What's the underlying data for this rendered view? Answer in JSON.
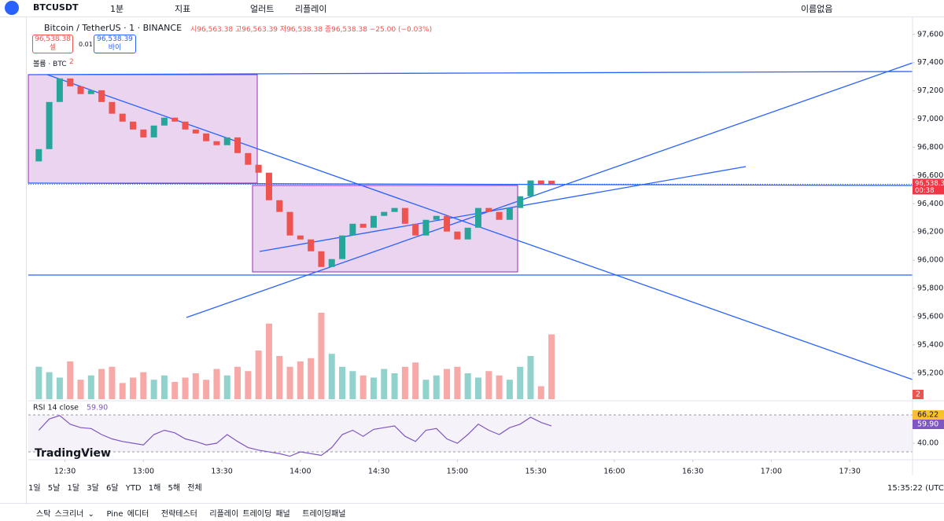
{
  "toolbar": {
    "symbol": "BTCUSDT",
    "interval": "1분",
    "indicators": "지표",
    "alert": "얼러트",
    "replay": "리플레이",
    "layout_name": "이름없음"
  },
  "legend": {
    "title": "Bitcoin / TetherUS · 1 · BINANCE",
    "ohlc": "시96,563.38 고96,563.39 저96,538.38 종96,538.38 −25.00 (−0.03%)",
    "sell_price": "96,538.38",
    "sell": "셀",
    "qty": "0.01",
    "buy_price": "96,538.39",
    "buy": "바이",
    "volume": "볼륨 · BTC",
    "volume_count": "2"
  },
  "price_label": "96,538.38",
  "countdown": "00:38",
  "alerts_count": "2",
  "rsi": {
    "label": "RSI 14 close",
    "value_label": "59.90",
    "ma_label": "66.22",
    "ylim": [
      25.5,
      84.5
    ],
    "yticks": [
      {
        "value": 40,
        "label": "40.00"
      }
    ],
    "values": [
      55,
      68,
      72,
      62,
      58,
      57,
      50,
      45,
      42,
      40,
      38,
      50,
      55,
      52,
      45,
      42,
      38,
      40,
      50,
      42,
      35,
      32,
      30,
      28,
      25,
      30,
      28,
      26,
      35,
      50,
      55,
      48,
      56,
      58,
      60,
      48,
      42,
      55,
      57,
      45,
      40,
      50,
      62,
      55,
      50,
      58,
      62,
      70,
      64,
      59.9
    ]
  },
  "brand": "TradingView",
  "chart_data": {
    "type": "candlestick",
    "xlim": [
      "12:16",
      "17:54"
    ],
    "xticks": [
      "12:30",
      "13:00",
      "13:30",
      "14:00",
      "14:30",
      "15:00",
      "15:30",
      "16:00",
      "16:30",
      "17:00",
      "17:30"
    ],
    "ylim": [
      95015,
      97710
    ],
    "yticks": [
      {
        "value": 97600,
        "label": "97,600.00"
      },
      {
        "value": 97400,
        "label": "97,400.00"
      },
      {
        "value": 97200,
        "label": "97,200.00"
      },
      {
        "value": 97000,
        "label": "97,000.00"
      },
      {
        "value": 96800,
        "label": "96,800.00"
      },
      {
        "value": 96600,
        "label": "96,600.00"
      },
      {
        "value": 96400,
        "label": "96,400.00"
      },
      {
        "value": 96200,
        "label": "96,200.00"
      },
      {
        "value": 96000,
        "label": "96,000.00"
      },
      {
        "value": 95800,
        "label": "95,800.00"
      },
      {
        "value": 95600,
        "label": "95,600.00"
      },
      {
        "value": 95400,
        "label": "95,400.00"
      },
      {
        "value": 95200,
        "label": "95,200.00"
      }
    ],
    "x": [
      "12:20",
      "12:24",
      "12:28",
      "12:32",
      "12:36",
      "12:40",
      "12:44",
      "12:48",
      "12:52",
      "12:56",
      "13:00",
      "13:04",
      "13:08",
      "13:12",
      "13:16",
      "13:20",
      "13:24",
      "13:28",
      "13:32",
      "13:36",
      "13:40",
      "13:44",
      "13:48",
      "13:52",
      "13:56",
      "14:00",
      "14:04",
      "14:08",
      "14:12",
      "14:16",
      "14:20",
      "14:24",
      "14:28",
      "14:32",
      "14:36",
      "14:40",
      "14:44",
      "14:48",
      "14:52",
      "14:56",
      "15:00",
      "15:04",
      "15:08",
      "15:12",
      "15:16",
      "15:20",
      "15:24",
      "15:28",
      "15:32",
      "15:36"
    ],
    "open": [
      96700,
      96787,
      97121,
      97288,
      97232,
      97177,
      97204,
      97121,
      97038,
      96982,
      96926,
      96870,
      96954,
      97010,
      96982,
      96926,
      96898,
      96843,
      96815,
      96870,
      96759,
      96676,
      96620,
      96425,
      96342,
      96175,
      96147,
      96063,
      95952,
      96008,
      96175,
      96258,
      96230,
      96314,
      96342,
      96370,
      96258,
      96175,
      96286,
      96314,
      96203,
      96147,
      96230,
      96370,
      96342,
      96286,
      96370,
      96453,
      96565,
      96563.38
    ],
    "close": [
      96787,
      97121,
      97288,
      97232,
      97177,
      97204,
      97121,
      97038,
      96982,
      96926,
      96870,
      96954,
      97010,
      96982,
      96926,
      96898,
      96843,
      96815,
      96870,
      96759,
      96676,
      96620,
      96425,
      96342,
      96175,
      96147,
      96063,
      95952,
      96008,
      96175,
      96258,
      96230,
      96314,
      96342,
      96370,
      96258,
      96175,
      96286,
      96314,
      96203,
      96147,
      96230,
      96370,
      96342,
      96286,
      96370,
      96453,
      96565,
      96537,
      96538.38
    ],
    "volume": [
      30,
      25,
      20,
      35,
      18,
      22,
      28,
      30,
      15,
      20,
      25,
      18,
      22,
      16,
      20,
      24,
      18,
      28,
      22,
      30,
      26,
      45,
      70,
      40,
      30,
      35,
      38,
      80,
      42,
      30,
      26,
      22,
      20,
      28,
      24,
      30,
      34,
      18,
      22,
      28,
      30,
      24,
      20,
      26,
      22,
      18,
      30,
      40,
      12,
      60
    ]
  }
}
